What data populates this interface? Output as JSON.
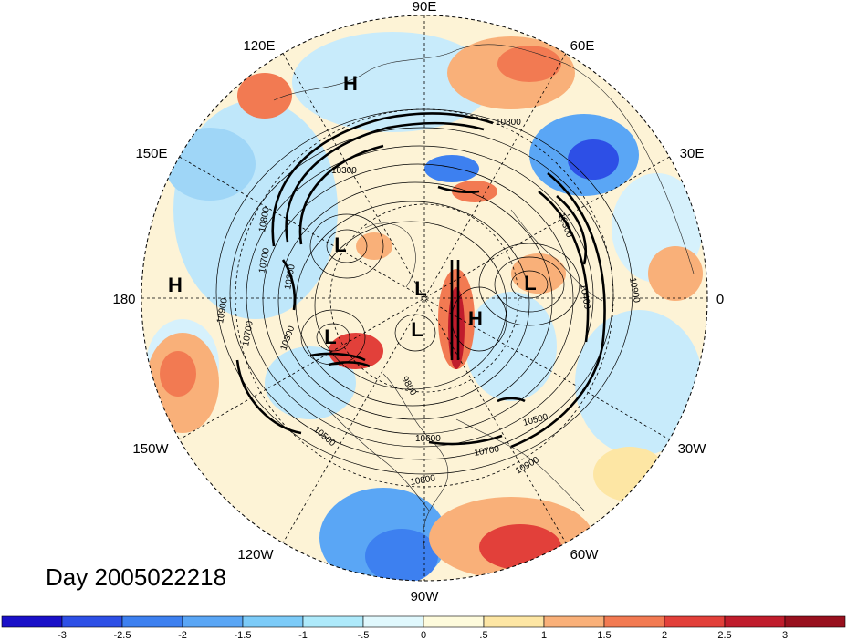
{
  "title": "Day 2005022218",
  "longitude_labels": {
    "lon_90e": "90E",
    "lon_60e": "60E",
    "lon_30e": "30E",
    "lon_0": "0",
    "lon_30w": "30W",
    "lon_60w": "60W",
    "lon_90w": "90W",
    "lon_120w": "120W",
    "lon_150w": "150W",
    "lon_180": "180",
    "lon_150e": "150E",
    "lon_120e": "120E"
  },
  "pressure_centers": [
    {
      "label": "H",
      "region": "east-siberia"
    },
    {
      "label": "H",
      "region": "north-pacific"
    },
    {
      "label": "L",
      "region": "siberia"
    },
    {
      "label": "L",
      "region": "arctic"
    },
    {
      "label": "L",
      "region": "scandinavia"
    },
    {
      "label": "H",
      "region": "greenland"
    },
    {
      "label": "L",
      "region": "alaska"
    },
    {
      "label": "L",
      "region": "canada"
    }
  ],
  "contour_labels": [
    "10800",
    "10300",
    "10800",
    "10700",
    "10300",
    "10900",
    "10900",
    "10700",
    "10300",
    "10500",
    "9800",
    "10500",
    "10600",
    "10700",
    "10800",
    "10900",
    "10300",
    "10400"
  ],
  "colorbar": {
    "ticks": [
      "-3",
      "-2.5",
      "-2",
      "-1.5",
      "-1",
      "-.5",
      "0",
      ".5",
      "1",
      "1.5",
      "2",
      "2.5",
      "3"
    ],
    "colors": [
      "#1a10c8",
      "#2d4fe6",
      "#3d80f0",
      "#5aa6f5",
      "#7ccbf8",
      "#aeeafb",
      "#e0f8fd",
      "#fefbdc",
      "#fde6a4",
      "#f9b079",
      "#f27a52",
      "#e2403a",
      "#c01c2c",
      "#98101e"
    ]
  },
  "colors": {
    "ocean_neutral": "#fdf6dc",
    "cold": "#3d80f0",
    "warm": "#e2403a"
  }
}
